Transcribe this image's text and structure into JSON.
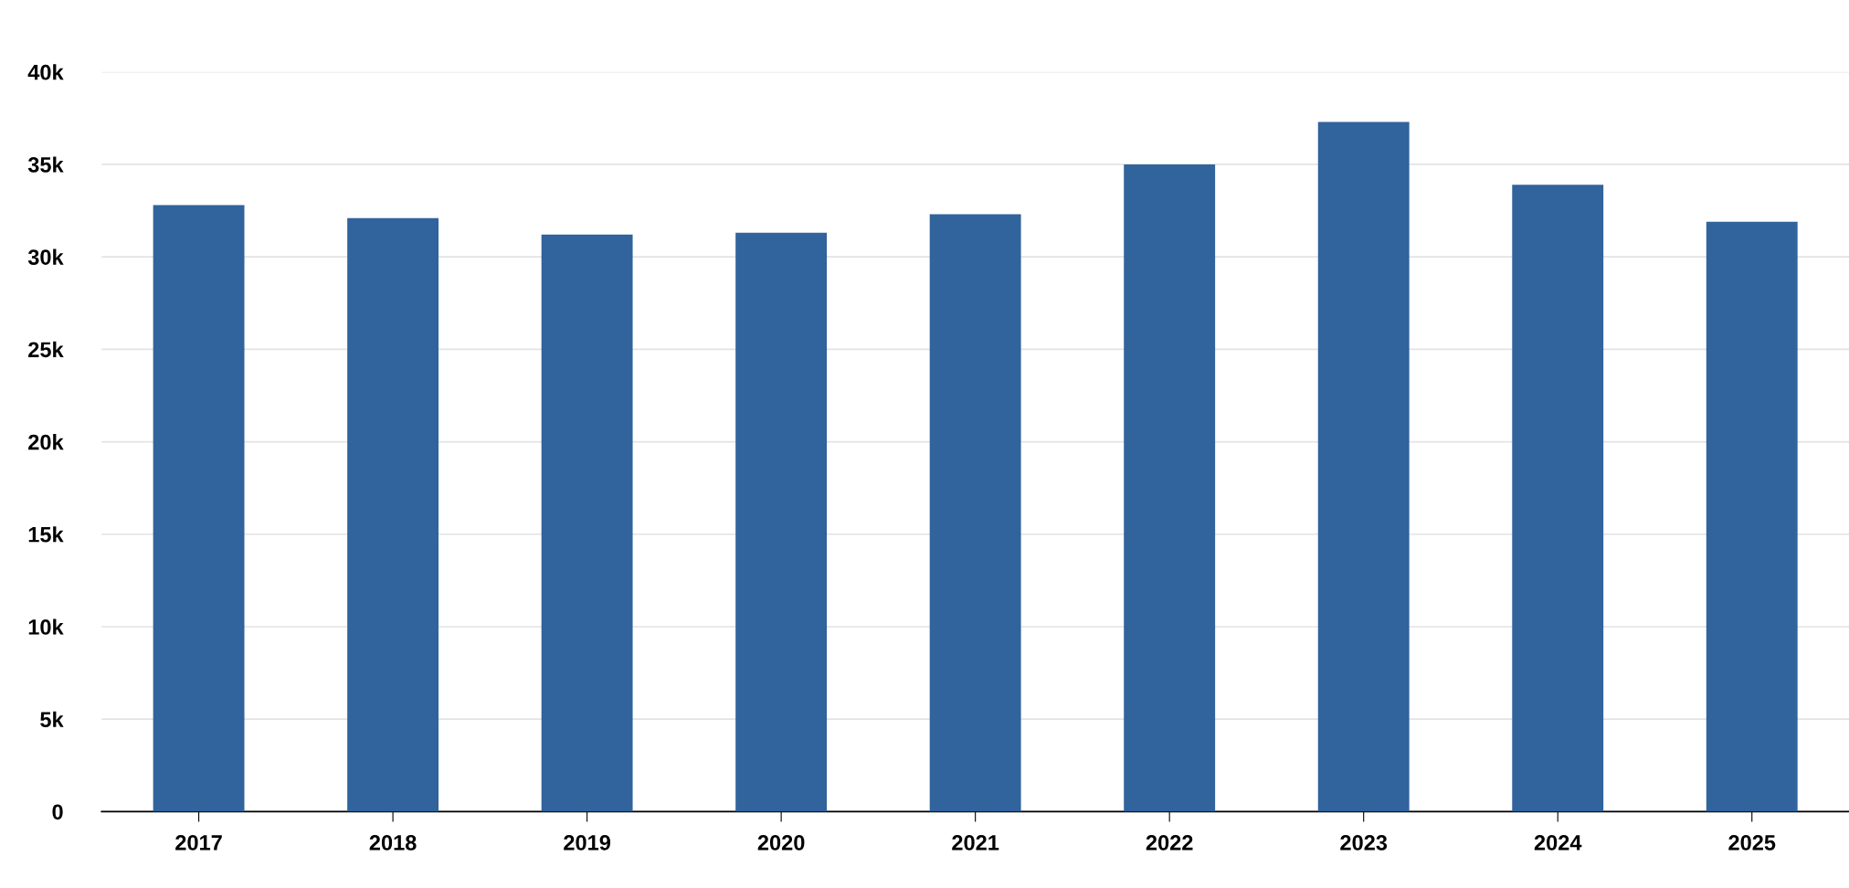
{
  "chart_data": {
    "type": "bar",
    "categories": [
      "2017",
      "2018",
      "2019",
      "2020",
      "2021",
      "2022",
      "2023",
      "2024",
      "2025"
    ],
    "values": [
      32800,
      32100,
      31200,
      31300,
      32300,
      35000,
      37300,
      33900,
      31900
    ],
    "color": "#31639c",
    "ylim": [
      0,
      40000
    ],
    "yticks": [
      {
        "value": 0,
        "label": "0"
      },
      {
        "value": 5000,
        "label": "5k"
      },
      {
        "value": 10000,
        "label": "10k"
      },
      {
        "value": 15000,
        "label": "15k"
      },
      {
        "value": 20000,
        "label": "20k"
      },
      {
        "value": 25000,
        "label": "25k"
      },
      {
        "value": 30000,
        "label": "30k"
      },
      {
        "value": 35000,
        "label": "35k"
      },
      {
        "value": 40000,
        "label": "40k"
      }
    ],
    "grid": "y"
  }
}
